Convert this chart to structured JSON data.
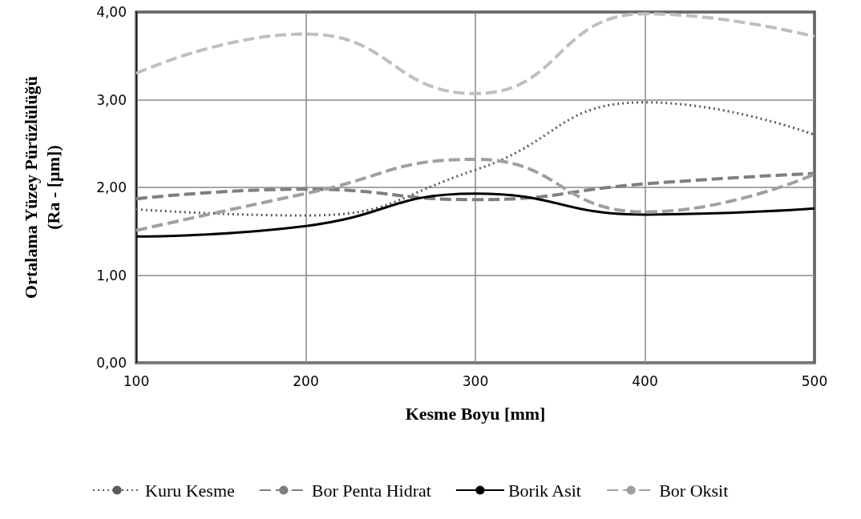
{
  "chart_data": {
    "type": "line",
    "xlabel": "Kesme Boyu [mm]",
    "ylabel": "Ortalama Yüzey Pürüzlülüğü\n(Ra - [µm])",
    "x": [
      100,
      200,
      300,
      400,
      500
    ],
    "series": [
      {
        "name": "Kuru Kesme",
        "color": "#595959",
        "line_style": "dotted",
        "values": [
          1.75,
          1.68,
          2.2,
          2.97,
          2.6
        ]
      },
      {
        "color": "#bfbfbf",
        "line_style": "dashed",
        "values": [
          3.3,
          3.75,
          3.07,
          3.98,
          3.72
        ]
      },
      {
        "name": "Bor Penta Hidrat",
        "color": "#7f7f7f",
        "line_style": "dashed",
        "values": [
          1.87,
          1.98,
          1.86,
          2.04,
          2.16
        ]
      },
      {
        "name": "Borik Asit",
        "color": "#000000",
        "line_style": "solid",
        "values": [
          1.44,
          1.56,
          1.93,
          1.69,
          1.76
        ]
      },
      {
        "name": "Bor Oksit",
        "color": "#a0a0a0",
        "line_style": "dashed",
        "values": [
          1.51,
          1.93,
          2.32,
          1.72,
          2.15
        ]
      }
    ],
    "xlim": [
      100,
      500
    ],
    "xticks": [
      100,
      200,
      300,
      400,
      500
    ],
    "ylim": [
      0,
      4
    ],
    "yticks": [
      {
        "value": 0,
        "label": "0,00"
      },
      {
        "value": 1,
        "label": "1,00"
      },
      {
        "value": 2,
        "label": "2,00"
      },
      {
        "value": 3,
        "label": "3,00"
      },
      {
        "value": 4,
        "label": "4,00"
      }
    ],
    "grid": true,
    "legend": "bottom",
    "marker": "none"
  }
}
